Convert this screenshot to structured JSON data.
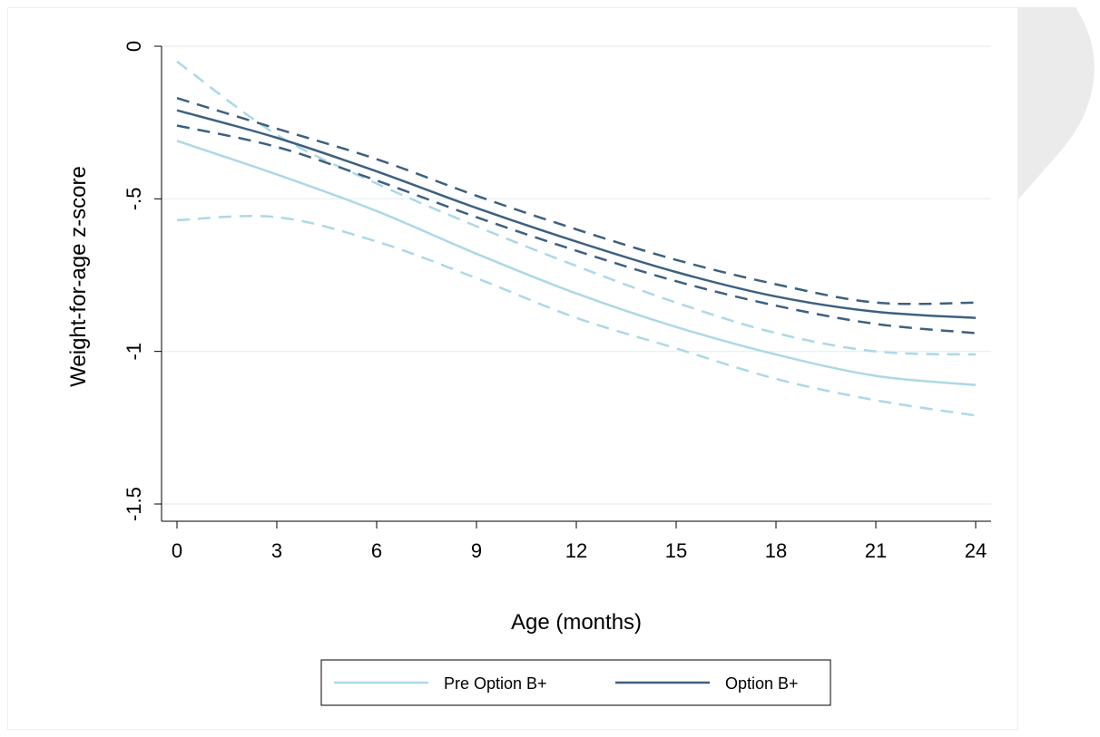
{
  "chart_data": {
    "type": "line",
    "xlabel": "Age (months)",
    "ylabel": "Weight-for-age z-score",
    "xlim": [
      0,
      24
    ],
    "ylim": [
      -1.5,
      0
    ],
    "x_ticks": [
      0,
      3,
      6,
      9,
      12,
      15,
      18,
      21,
      24
    ],
    "x_tick_labels": [
      "0",
      "3",
      "6",
      "9",
      "12",
      "15",
      "18",
      "21",
      "24"
    ],
    "y_ticks": [
      0,
      -0.5,
      -1,
      -1.5
    ],
    "y_tick_labels": [
      "0",
      "-.5",
      "-1",
      "-1.5"
    ],
    "grid": "horizontal",
    "legend_position": "bottom",
    "x": [
      0,
      3,
      6,
      9,
      12,
      15,
      18,
      21,
      24
    ],
    "series": [
      {
        "name": "Pre Option B+",
        "color": "#add8e6",
        "style": "solid",
        "values": [
          -0.31,
          -0.42,
          -0.54,
          -0.68,
          -0.81,
          -0.92,
          -1.01,
          -1.08,
          -1.11
        ]
      },
      {
        "name": "Option B+",
        "color": "#3e6080",
        "style": "solid",
        "values": [
          -0.21,
          -0.3,
          -0.41,
          -0.53,
          -0.64,
          -0.74,
          -0.82,
          -0.87,
          -0.89
        ]
      }
    ],
    "confidence_bands": [
      {
        "series": "Pre Option B+",
        "color": "#add8e6",
        "style": "dashed",
        "upper": [
          -0.05,
          -0.29,
          -0.45,
          -0.59,
          -0.72,
          -0.84,
          -0.94,
          -1.0,
          -1.01
        ],
        "lower": [
          -0.57,
          -0.56,
          -0.64,
          -0.76,
          -0.89,
          -0.99,
          -1.09,
          -1.16,
          -1.21
        ]
      },
      {
        "series": "Option B+",
        "color": "#3e6080",
        "style": "dashed",
        "upper": [
          -0.17,
          -0.27,
          -0.37,
          -0.49,
          -0.6,
          -0.7,
          -0.78,
          -0.84,
          -0.84
        ],
        "lower": [
          -0.26,
          -0.33,
          -0.44,
          -0.56,
          -0.67,
          -0.77,
          -0.85,
          -0.91,
          -0.94
        ]
      }
    ]
  }
}
